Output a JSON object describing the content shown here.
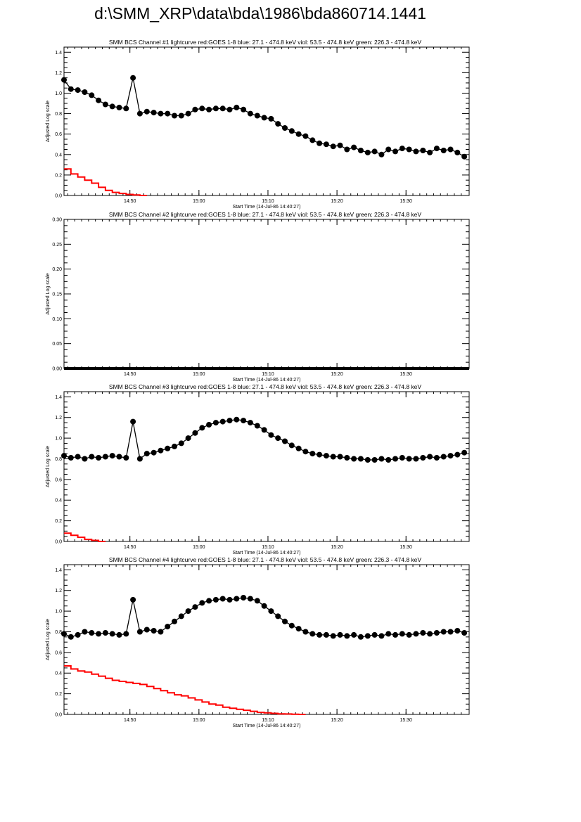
{
  "page": {
    "title": "d:\\SMM_XRP\\data\\bda\\1986\\bda860714.1441"
  },
  "chart_data": [
    {
      "type": "line",
      "title": "SMM BCS Channel #1 lightcurve  red:GOES 1-8  blue: 27.1 - 474.8 keV  viol: 53.5 - 474.8 keV  green: 226.3 - 474.8 keV",
      "xlabel": "Start Time (14-Jul-86 14:40:27)",
      "ylabel": "Adjusted Log scale",
      "xlim_minutes": [
        0,
        58.7
      ],
      "ylim": [
        0,
        1.45
      ],
      "yticks": [
        0.0,
        0.2,
        0.4,
        0.6,
        0.8,
        1.0,
        1.2,
        1.4
      ],
      "ytick_labels": [
        "0.0",
        "0.2",
        "0.4",
        "0.6",
        "0.8",
        "1.0",
        "1.2",
        "1.4"
      ],
      "xticks_minutes": [
        9.55,
        19.55,
        29.55,
        39.55,
        49.55
      ],
      "xtick_labels": [
        "14:50",
        "15:00",
        "15:10",
        "15:20",
        "15:30"
      ],
      "series": [
        {
          "color": "#000000",
          "style": "line-markers",
          "x": [
            0,
            1,
            2,
            3,
            4,
            5,
            6,
            7,
            8,
            9,
            10,
            11,
            12,
            13,
            14,
            15,
            16,
            17,
            18,
            19,
            20,
            21,
            22,
            23,
            24,
            25,
            26,
            27,
            28,
            29,
            30,
            31,
            32,
            33,
            34,
            35,
            36,
            37,
            38,
            39,
            40,
            41,
            42,
            43,
            44,
            45,
            46,
            47,
            48,
            49,
            50,
            51,
            52,
            53,
            54,
            55,
            56,
            57,
            58
          ],
          "y": [
            1.13,
            1.04,
            1.03,
            1.01,
            0.98,
            0.93,
            0.89,
            0.87,
            0.86,
            0.85,
            1.15,
            0.8,
            0.82,
            0.81,
            0.8,
            0.8,
            0.78,
            0.78,
            0.8,
            0.84,
            0.85,
            0.84,
            0.85,
            0.85,
            0.84,
            0.86,
            0.84,
            0.8,
            0.78,
            0.76,
            0.75,
            0.7,
            0.66,
            0.63,
            0.6,
            0.58,
            0.54,
            0.51,
            0.5,
            0.48,
            0.49,
            0.45,
            0.47,
            0.44,
            0.42,
            0.43,
            0.4,
            0.45,
            0.43,
            0.46,
            0.45,
            0.43,
            0.44,
            0.42,
            0.46,
            0.44,
            0.45,
            0.42,
            0.38
          ]
        },
        {
          "name": "GOES 1-8",
          "color": "#ff0000",
          "style": "step",
          "x": [
            0,
            1,
            2,
            3,
            4,
            5,
            6,
            7,
            8,
            9,
            10,
            11
          ],
          "y": [
            0.26,
            0.21,
            0.18,
            0.15,
            0.12,
            0.08,
            0.05,
            0.03,
            0.02,
            0.01,
            0.005,
            0.0
          ]
        }
      ]
    },
    {
      "type": "line",
      "title": "SMM BCS Channel #2 lightcurve  red:GOES 1-8  blue: 27.1 - 474.8 keV  viol: 53.5 - 474.8 keV  green: 226.3 - 474.8 keV",
      "xlabel": "Start Time (14-Jul-86 14:40:27)",
      "ylabel": "Adjusted Log scale",
      "xlim_minutes": [
        0,
        58.7
      ],
      "ylim": [
        0,
        0.3
      ],
      "yticks": [
        0.0,
        0.05,
        0.1,
        0.15,
        0.2,
        0.25,
        0.3
      ],
      "ytick_labels": [
        "0.00",
        "0.05",
        "0.10",
        "0.15",
        "0.20",
        "0.25",
        "0.30"
      ],
      "xticks_minutes": [
        9.55,
        19.55,
        29.55,
        39.55,
        49.55
      ],
      "xtick_labels": [
        "14:50",
        "15:00",
        "15:10",
        "15:20",
        "15:30"
      ],
      "series": [
        {
          "color": "#000000",
          "style": "line-markers-flat",
          "x": [
            0,
            58.7
          ],
          "y": [
            0.0,
            0.0
          ]
        }
      ]
    },
    {
      "type": "line",
      "title": "SMM BCS Channel #3 lightcurve  red:GOES 1-8  blue: 27.1 - 474.8 keV  viol: 53.5 - 474.8 keV  green: 226.3 - 474.8 keV",
      "xlabel": "Start Time (14-Jul-86 14:40:27)",
      "ylabel": "Adjusted Log scale",
      "xlim_minutes": [
        0,
        58.7
      ],
      "ylim": [
        0,
        1.45
      ],
      "yticks": [
        0.0,
        0.2,
        0.4,
        0.6,
        0.8,
        1.0,
        1.2,
        1.4
      ],
      "ytick_labels": [
        "0.0",
        "0.2",
        "0.4",
        "0.6",
        "0.8",
        "1.0",
        "1.2",
        "1.4"
      ],
      "xticks_minutes": [
        9.55,
        19.55,
        29.55,
        39.55,
        49.55
      ],
      "xtick_labels": [
        "14:50",
        "15:00",
        "15:10",
        "15:20",
        "15:30"
      ],
      "series": [
        {
          "color": "#000000",
          "style": "line-markers",
          "x": [
            0,
            1,
            2,
            3,
            4,
            5,
            6,
            7,
            8,
            9,
            10,
            11,
            12,
            13,
            14,
            15,
            16,
            17,
            18,
            19,
            20,
            21,
            22,
            23,
            24,
            25,
            26,
            27,
            28,
            29,
            30,
            31,
            32,
            33,
            34,
            35,
            36,
            37,
            38,
            39,
            40,
            41,
            42,
            43,
            44,
            45,
            46,
            47,
            48,
            49,
            50,
            51,
            52,
            53,
            54,
            55,
            56,
            57,
            58
          ],
          "y": [
            0.83,
            0.81,
            0.82,
            0.8,
            0.82,
            0.81,
            0.82,
            0.83,
            0.82,
            0.81,
            1.16,
            0.8,
            0.85,
            0.86,
            0.88,
            0.9,
            0.92,
            0.95,
            1.0,
            1.05,
            1.1,
            1.13,
            1.15,
            1.16,
            1.17,
            1.18,
            1.17,
            1.15,
            1.12,
            1.08,
            1.03,
            1.0,
            0.97,
            0.93,
            0.9,
            0.87,
            0.85,
            0.84,
            0.83,
            0.82,
            0.82,
            0.81,
            0.8,
            0.8,
            0.79,
            0.79,
            0.8,
            0.79,
            0.8,
            0.81,
            0.8,
            0.8,
            0.81,
            0.82,
            0.81,
            0.82,
            0.83,
            0.84,
            0.86
          ]
        },
        {
          "name": "GOES 1-8",
          "color": "#ff0000",
          "style": "step",
          "x": [
            0,
            1,
            2,
            3,
            4,
            5
          ],
          "y": [
            0.08,
            0.06,
            0.04,
            0.02,
            0.01,
            0.0
          ]
        }
      ]
    },
    {
      "type": "line",
      "title": "SMM BCS Channel #4 lightcurve  red:GOES 1-8  blue: 27.1 - 474.8 keV  viol: 53.5 - 474.8 keV  green: 226.3 - 474.8 keV",
      "xlabel": "Start Time (14-Jul-86 14:40:27)",
      "ylabel": "Adjusted Log scale",
      "xlim_minutes": [
        0,
        58.7
      ],
      "ylim": [
        0,
        1.45
      ],
      "yticks": [
        0.0,
        0.2,
        0.4,
        0.6,
        0.8,
        1.0,
        1.2,
        1.4
      ],
      "ytick_labels": [
        "0.0",
        "0.2",
        "0.4",
        "0.6",
        "0.8",
        "1.0",
        "1.2",
        "1.4"
      ],
      "xticks_minutes": [
        9.55,
        19.55,
        29.55,
        39.55,
        49.55
      ],
      "xtick_labels": [
        "14:50",
        "15:00",
        "15:10",
        "15:20",
        "15:30"
      ],
      "series": [
        {
          "color": "#000000",
          "style": "line-markers",
          "x": [
            0,
            1,
            2,
            3,
            4,
            5,
            6,
            7,
            8,
            9,
            10,
            11,
            12,
            13,
            14,
            15,
            16,
            17,
            18,
            19,
            20,
            21,
            22,
            23,
            24,
            25,
            26,
            27,
            28,
            29,
            30,
            31,
            32,
            33,
            34,
            35,
            36,
            37,
            38,
            39,
            40,
            41,
            42,
            43,
            44,
            45,
            46,
            47,
            48,
            49,
            50,
            51,
            52,
            53,
            54,
            55,
            56,
            57,
            58
          ],
          "y": [
            0.78,
            0.75,
            0.77,
            0.8,
            0.79,
            0.78,
            0.79,
            0.78,
            0.77,
            0.78,
            1.11,
            0.8,
            0.82,
            0.81,
            0.8,
            0.85,
            0.9,
            0.95,
            1.0,
            1.04,
            1.08,
            1.1,
            1.11,
            1.12,
            1.11,
            1.12,
            1.13,
            1.12,
            1.1,
            1.05,
            1.0,
            0.95,
            0.9,
            0.86,
            0.83,
            0.8,
            0.78,
            0.77,
            0.77,
            0.76,
            0.77,
            0.76,
            0.77,
            0.75,
            0.76,
            0.77,
            0.76,
            0.78,
            0.77,
            0.78,
            0.77,
            0.78,
            0.79,
            0.78,
            0.79,
            0.8,
            0.8,
            0.81,
            0.79
          ]
        },
        {
          "name": "GOES 1-8",
          "color": "#ff0000",
          "style": "step",
          "x": [
            0,
            1,
            2,
            3,
            4,
            5,
            6,
            7,
            8,
            9,
            10,
            11,
            12,
            13,
            14,
            15,
            16,
            17,
            18,
            19,
            20,
            21,
            22,
            23,
            24,
            25,
            26,
            27,
            28,
            29,
            30,
            31,
            32,
            33,
            34
          ],
          "y": [
            0.47,
            0.44,
            0.42,
            0.41,
            0.39,
            0.37,
            0.35,
            0.33,
            0.32,
            0.31,
            0.3,
            0.29,
            0.27,
            0.25,
            0.23,
            0.21,
            0.19,
            0.18,
            0.16,
            0.14,
            0.12,
            0.1,
            0.09,
            0.07,
            0.06,
            0.05,
            0.04,
            0.03,
            0.02,
            0.015,
            0.01,
            0.005,
            0.004,
            0.002,
            0.0
          ]
        }
      ]
    }
  ]
}
